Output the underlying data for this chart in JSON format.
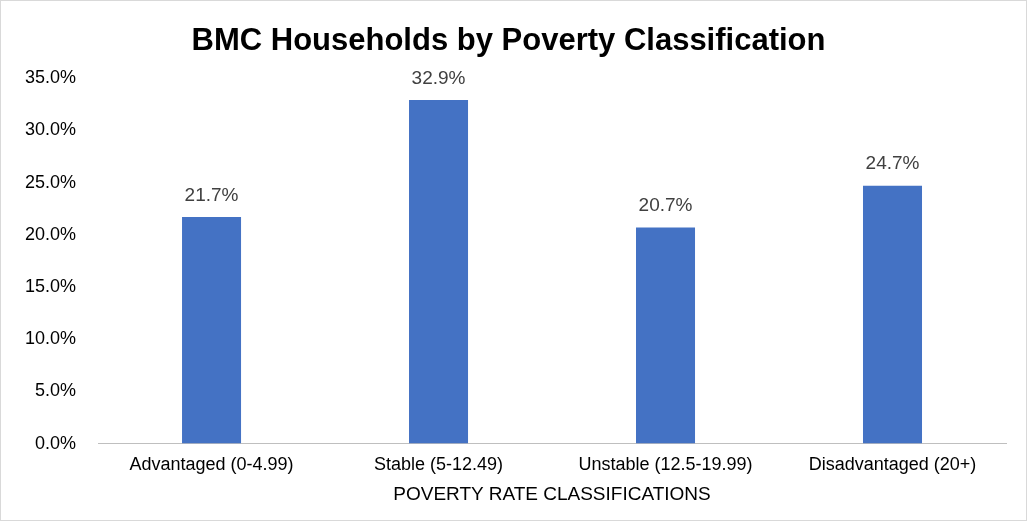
{
  "chart_data": {
    "type": "bar",
    "title": "BMC Households by Poverty Classification",
    "xlabel": "POVERTY RATE CLASSIFICATIONS",
    "categories": [
      "Advantaged (0-4.99)",
      "Stable (5-12.49)",
      "Unstable (12.5-19.99)",
      "Disadvantaged (20+)"
    ],
    "values": [
      21.7,
      32.9,
      20.7,
      24.7
    ],
    "value_labels": [
      "21.7%",
      "32.9%",
      "20.7%",
      "24.7%"
    ],
    "color": "#4472c4",
    "ylim": [
      0,
      35
    ],
    "yticks": [
      {
        "value": 0,
        "label": "0.0%"
      },
      {
        "value": 5,
        "label": "5.0%"
      },
      {
        "value": 10,
        "label": "10.0%"
      },
      {
        "value": 15,
        "label": "15.0%"
      },
      {
        "value": 20,
        "label": "20.0%"
      },
      {
        "value": 25,
        "label": "25.0%"
      },
      {
        "value": 30,
        "label": "30.0%"
      },
      {
        "value": 35,
        "label": "35.0%"
      }
    ],
    "grid": false,
    "legend": false
  }
}
